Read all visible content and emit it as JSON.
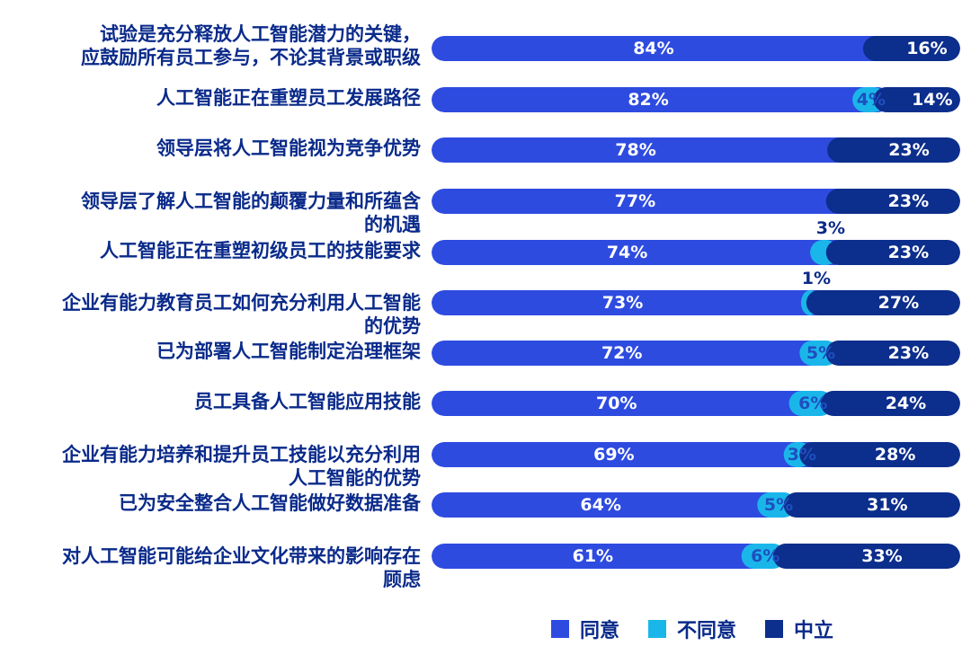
{
  "chart_data": {
    "type": "bar",
    "orientation": "horizontal",
    "stacked": true,
    "categories": [
      "试验是充分释放人工智能潜力的关键，应鼓励所有员工参与，不论其背景或职级",
      "人工智能正在重塑员工发展路径",
      "领导层将人工智能视为竞争优势",
      "领导层了解人工智能的颠覆力量和所蕴含的机遇",
      "人工智能正在重塑初级员工的技能要求",
      "企业有能力教育员工如何充分利用人工智能的优势",
      "已为部署人工智能制定治理框架",
      "员工具备人工智能应用技能",
      "企业有能力培养和提升员工技能以充分利用人工智能的优势",
      "已为安全整合人工智能做好数据准备",
      "对人工智能可能给企业文化带来的影响存在顾虑"
    ],
    "category_lines": [
      [
        "试验是充分释放人工智能潜力的关键，",
        "应鼓励所有员工参与，不论其背景或职级"
      ],
      [
        "人工智能正在重塑员工发展路径"
      ],
      [
        "领导层将人工智能视为竞争优势"
      ],
      [
        "领导层了解人工智能的颠覆力量和所蕴含",
        "的机遇"
      ],
      [
        "人工智能正在重塑初级员工的技能要求"
      ],
      [
        "企业有能力教育员工如何充分利用人工智能",
        "的优势"
      ],
      [
        "已为部署人工智能制定治理框架"
      ],
      [
        "员工具备人工智能应用技能"
      ],
      [
        "企业有能力培养和提升员工技能以充分利用",
        "人工智能的优势"
      ],
      [
        "已为安全整合人工智能做好数据准备"
      ],
      [
        "对人工智能可能给企业文化带来的影响存在",
        "顾虑"
      ]
    ],
    "series": [
      {
        "name": "同意",
        "color": "#2e4be0",
        "values": [
          84,
          82,
          78,
          77,
          74,
          73,
          72,
          70,
          69,
          64,
          61
        ]
      },
      {
        "name": "不同意",
        "color": "#1ab6ea",
        "values": [
          null,
          4,
          null,
          null,
          3,
          1,
          5,
          6,
          3,
          5,
          6
        ]
      },
      {
        "name": "中立",
        "color": "#0c2e8c",
        "values": [
          16,
          14,
          23,
          23,
          23,
          27,
          23,
          24,
          28,
          31,
          33
        ]
      }
    ],
    "xlim": [
      0,
      100
    ],
    "legend_position": "bottom-right",
    "grid": false
  }
}
